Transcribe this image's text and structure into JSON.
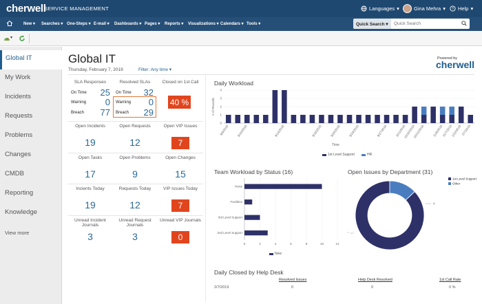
{
  "app": {
    "brand": "cherwell",
    "product": "SERVICE MANAGEMENT",
    "languages": "Languages",
    "user": "Gina Mehra",
    "help": "Help"
  },
  "menu": [
    "New",
    "Searches",
    "One-Steps",
    "E-mail",
    "Dashboards",
    "Pages",
    "Reports",
    "Visualizations",
    "Calendars",
    "Tools"
  ],
  "quick_search": {
    "label": "Quick Search",
    "placeholder": "Quick Search"
  },
  "sidebar": {
    "items": [
      "Global IT",
      "My Work",
      "Incidents",
      "Requests",
      "Problems",
      "Changes",
      "CMDB",
      "Reporting",
      "Knowledge"
    ],
    "view_more": "View more"
  },
  "dashboard": {
    "title": "Global IT",
    "date": "Thursday, February 7, 2019",
    "filter": "Filter: Any time",
    "powered_by": "Powered by",
    "powered_logo": "cherwell"
  },
  "sla": {
    "header_responses": "SLA Responses",
    "header_resolved": "Resolved SLAs",
    "header_closed": "Closed on 1st Call",
    "on_time": "On Time",
    "warning": "Warning",
    "breach": "Breach",
    "resp_on_time": "25",
    "resp_warning": "0",
    "resp_breach": "77",
    "res_on_time": "32",
    "res_warning": "0",
    "res_breach": "29",
    "closed_pct": "40 %"
  },
  "tiles": [
    {
      "label": "Open Incidents",
      "value": "19",
      "red": false
    },
    {
      "label": "Open Requests",
      "value": "12",
      "red": false
    },
    {
      "label": "Open VIP Issues",
      "value": "7",
      "red": true
    },
    {
      "label": "Open Tasks",
      "value": "17",
      "red": false
    },
    {
      "label": "Open Problems",
      "value": "9",
      "red": false
    },
    {
      "label": "Open Changes",
      "value": "15",
      "red": false
    },
    {
      "label": "Incients Today",
      "value": "19",
      "red": false
    },
    {
      "label": "Requests Today",
      "value": "12",
      "red": false
    },
    {
      "label": "VIP Issues Today",
      "value": "7",
      "red": true
    },
    {
      "label": "Unread Incident Journals",
      "value": "3",
      "red": false
    },
    {
      "label": "Unread Request Journals",
      "value": "3",
      "red": false
    },
    {
      "label": "Unread VIP Journals",
      "value": "0",
      "red": true
    }
  ],
  "colors": {
    "dark_navy": "#2e3168",
    "light_blue": "#4a7dbf",
    "red": "#e1451d"
  },
  "chart_data": [
    {
      "type": "bar",
      "title": "Daily Workload",
      "xlabel": "Time",
      "ylabel": "# of Records",
      "ylim": [
        0,
        4
      ],
      "categories": [
        "9/6/2018",
        "9/7/2018",
        "9/10/2018",
        "9/11/2018",
        "9/12/2018",
        "9/13/2018",
        "9/14/2018",
        "9/15/2018",
        "9/16/2018",
        "9/17/2018",
        "9/18/2018",
        "9/19/2018",
        "9/20/2018",
        "9/21/2018",
        "9/24/2018",
        "9/25/2018",
        "9/26/2018",
        "9/27/2018",
        "9/28/2018",
        "10/1/2018",
        "10/10/2018",
        "10/11/2018",
        "10/12/2018",
        "11/6/2018",
        "11/7/2018",
        "1/22/2019",
        "2/7/2019"
      ],
      "tick_labels": [
        "9/6/2018",
        "9/10/2018",
        "9/14/2018",
        "9/18/2018",
        "9/20/2018",
        "9/24/2018",
        "9/27/2018",
        "10/1/2018",
        "10/10/2018",
        "10/11/2018",
        "11/6/2018",
        "11/7/2018",
        "1/22/2019",
        "2/7/2019"
      ],
      "series": [
        {
          "name": "1st Level Support",
          "values": [
            1,
            1,
            1,
            1,
            1,
            4,
            4,
            1,
            1,
            1,
            1,
            1,
            1,
            1,
            1,
            1,
            1,
            1,
            1,
            1,
            2,
            1,
            2,
            1,
            1,
            2,
            1
          ]
        },
        {
          "name": "HR",
          "values": [
            0,
            0,
            0,
            0,
            0,
            0,
            0,
            0,
            0,
            0,
            0,
            0,
            0,
            0,
            0,
            0,
            0,
            0,
            0,
            0,
            0,
            1,
            0,
            1,
            1,
            0,
            0
          ]
        }
      ],
      "legend": "bottom"
    },
    {
      "type": "bar",
      "title": "Team Workload by Status (16)",
      "orientation": "horizontal",
      "categories": [
        "None",
        "Facilities",
        "3rd Level Support",
        "2nd Level Support"
      ],
      "series": [
        {
          "name": "New",
          "values": [
            10,
            1,
            2,
            3
          ]
        }
      ],
      "xlim": [
        0,
        12
      ],
      "xticks": [
        "0",
        "2",
        "4",
        "6",
        "8",
        "10",
        "12"
      ],
      "legend": "bottom"
    },
    {
      "type": "pie",
      "title": "Open Issues by Department (31)",
      "labels": [
        "1st Level Support",
        "Other"
      ],
      "values": [
        27,
        4
      ],
      "value_labels": [
        "27",
        "4"
      ],
      "legend": "top-right"
    }
  ],
  "daily_closed": {
    "title": "Daily Closed by Help Desk",
    "headers": [
      "Resolved Issues",
      "Help Desk Resolved",
      "1st Call Rate"
    ],
    "rows": [
      {
        "date": "2/7/2019",
        "resolved": "0",
        "helpdesk": "0",
        "rate": "0 %"
      }
    ]
  }
}
